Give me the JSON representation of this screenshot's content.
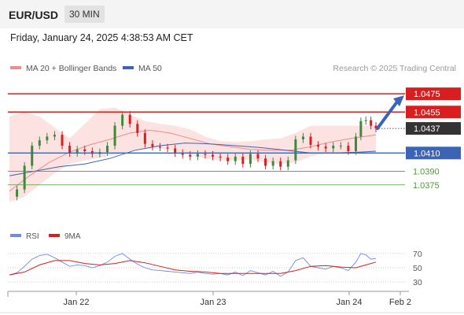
{
  "header": {
    "symbol": "EUR/USD",
    "timeframe": "30 MIN"
  },
  "datetime": "Friday, January 24, 2025 4:38:53 AM CET",
  "colors": {
    "resistance": "#d81e1e",
    "ma50": "#3b64b5",
    "support": "#4e9a3a",
    "bollinger_fill": "#fde2e2",
    "ma20": "#ef8b8b",
    "last_price": "#333333",
    "rsi": "#6e8ae6",
    "rsi_ma": "#d81e1e",
    "up_candle": "#3a8a3a",
    "down_candle": "#d81e1e"
  },
  "chart_data": [
    {
      "type": "line",
      "panel": "price",
      "legend": [
        {
          "name": "MA 20 + Bollinger Bands",
          "color": "#ef8b8b"
        },
        {
          "name": "MA 50",
          "color": "#3b64b5"
        }
      ],
      "watermark": "Research © 2025 Trading Central",
      "x_ticks": [
        "Jan 22",
        "Jan 23",
        "Jan 24",
        "Feb 2"
      ],
      "ylim": [
        1.0348,
        1.0495
      ],
      "series": [
        {
          "name": "MA 20",
          "x": [
            0,
            8,
            16,
            24,
            32,
            40,
            48,
            56,
            64,
            72,
            80,
            88,
            96,
            104,
            112,
            120,
            128,
            136,
            146
          ],
          "values": [
            1.0368,
            1.0385,
            1.04,
            1.0411,
            1.0419,
            1.0425,
            1.0432,
            1.0435,
            1.0432,
            1.0426,
            1.042,
            1.0417,
            1.0414,
            1.0413,
            1.0413,
            1.0417,
            1.0422,
            1.0426,
            1.043
          ]
        },
        {
          "name": "MA 50",
          "x": [
            0,
            10,
            20,
            30,
            40,
            50,
            60,
            70,
            80,
            90,
            100,
            110,
            120,
            130,
            140,
            146
          ],
          "values": [
            1.0385,
            1.039,
            1.0395,
            1.0398,
            1.0404,
            1.0413,
            1.0418,
            1.0421,
            1.042,
            1.0418,
            1.0416,
            1.0413,
            1.041,
            1.041,
            1.0411,
            1.0412
          ]
        },
        {
          "name": "Bollinger upper",
          "x": [
            0,
            6,
            12,
            18,
            24,
            30,
            36,
            42,
            48,
            54,
            60,
            66,
            72,
            78,
            84,
            90,
            96,
            102,
            108,
            114,
            120,
            126,
            132,
            138,
            146
          ],
          "values": [
            1.045,
            1.0455,
            1.045,
            1.0438,
            1.0426,
            1.0442,
            1.0458,
            1.046,
            1.0452,
            1.0445,
            1.0442,
            1.044,
            1.0436,
            1.0428,
            1.0423,
            1.0422,
            1.0423,
            1.0425,
            1.0426,
            1.0432,
            1.044,
            1.044,
            1.044,
            1.044,
            1.044
          ]
        },
        {
          "name": "Bollinger lower",
          "x": [
            0,
            6,
            12,
            18,
            24,
            30,
            36,
            42,
            48,
            54,
            60,
            66,
            72,
            78,
            84,
            90,
            96,
            102,
            108,
            114,
            120,
            126,
            132,
            138,
            146
          ],
          "values": [
            1.0356,
            1.0362,
            1.0375,
            1.0388,
            1.0398,
            1.0402,
            1.0405,
            1.0408,
            1.0412,
            1.0414,
            1.0415,
            1.0412,
            1.0408,
            1.0404,
            1.0402,
            1.0402,
            1.0403,
            1.04,
            1.0398,
            1.04,
            1.0406,
            1.041,
            1.041,
            1.041,
            1.041
          ]
        },
        {
          "name": "Price",
          "x": [
            0,
            3,
            6,
            9,
            12,
            15,
            18,
            21,
            24,
            27,
            30,
            33,
            36,
            39,
            42,
            45,
            48,
            51,
            54,
            57,
            60,
            63,
            66,
            69,
            72,
            75,
            78,
            81,
            84,
            87,
            90,
            93,
            96,
            99,
            102,
            105,
            108,
            111,
            114,
            117,
            120,
            123,
            126,
            129,
            132,
            135,
            138,
            140,
            142,
            144,
            146
          ],
          "values": [
            1.0362,
            1.037,
            1.0396,
            1.0418,
            1.0424,
            1.0428,
            1.043,
            1.0418,
            1.041,
            1.0414,
            1.0412,
            1.0409,
            1.0411,
            1.0418,
            1.044,
            1.0452,
            1.0442,
            1.0432,
            1.042,
            1.0417,
            1.0416,
            1.0415,
            1.041,
            1.0408,
            1.0406,
            1.0409,
            1.0408,
            1.0406,
            1.0405,
            1.0401,
            1.0406,
            1.0398,
            1.0409,
            1.0404,
            1.0396,
            1.0401,
            1.0395,
            1.0402,
            1.0425,
            1.0428,
            1.0419,
            1.0417,
            1.0415,
            1.0418,
            1.0418,
            1.0412,
            1.0428,
            1.0445,
            1.0446,
            1.044,
            1.0437
          ]
        }
      ],
      "levels": [
        {
          "label": "1.0475",
          "value": 1.0475,
          "kind": "resistance"
        },
        {
          "label": "1.0455",
          "value": 1.0455,
          "kind": "resistance"
        },
        {
          "label": "1.0437",
          "value": 1.0437,
          "kind": "last"
        },
        {
          "label": "1.0410",
          "value": 1.041,
          "kind": "pivot"
        },
        {
          "label": "1.0390",
          "value": 1.039,
          "kind": "support"
        },
        {
          "label": "1.0375",
          "value": 1.0375,
          "kind": "support"
        }
      ],
      "arrow": {
        "from": 1.0437,
        "to": 1.0475,
        "direction": "up"
      }
    },
    {
      "type": "line",
      "panel": "oscillator",
      "legend": [
        {
          "name": "RSI",
          "color": "#6e8ae6"
        },
        {
          "name": "9MA",
          "color": "#d81e1e"
        }
      ],
      "ylim": [
        18,
        82
      ],
      "y_ticks": [
        70,
        50,
        30
      ],
      "series": [
        {
          "name": "RSI",
          "x": [
            0,
            3,
            6,
            9,
            12,
            15,
            18,
            21,
            24,
            27,
            30,
            33,
            36,
            39,
            42,
            45,
            48,
            51,
            54,
            57,
            60,
            63,
            66,
            69,
            72,
            75,
            78,
            81,
            84,
            87,
            90,
            93,
            96,
            99,
            102,
            105,
            108,
            111,
            114,
            117,
            120,
            123,
            126,
            129,
            132,
            135,
            138,
            140,
            142,
            144,
            146
          ],
          "values": [
            40,
            43,
            52,
            62,
            67,
            69,
            64,
            58,
            52,
            54,
            53,
            50,
            53,
            58,
            66,
            70,
            62,
            55,
            50,
            47,
            46,
            45,
            44,
            43,
            42,
            44,
            42,
            41,
            42,
            40,
            44,
            39,
            46,
            43,
            40,
            45,
            38,
            44,
            60,
            64,
            52,
            50,
            48,
            52,
            50,
            46,
            58,
            70,
            68,
            62,
            63
          ]
        },
        {
          "name": "9MA",
          "x": [
            0,
            6,
            12,
            18,
            24,
            30,
            36,
            42,
            48,
            54,
            60,
            66,
            72,
            78,
            84,
            90,
            96,
            102,
            108,
            114,
            120,
            126,
            132,
            138,
            142,
            146
          ],
          "values": [
            40,
            44,
            54,
            60,
            60,
            56,
            54,
            56,
            60,
            57,
            52,
            47,
            45,
            44,
            42,
            42,
            42,
            42,
            42,
            46,
            52,
            53,
            51,
            50,
            54,
            58
          ]
        }
      ]
    }
  ]
}
